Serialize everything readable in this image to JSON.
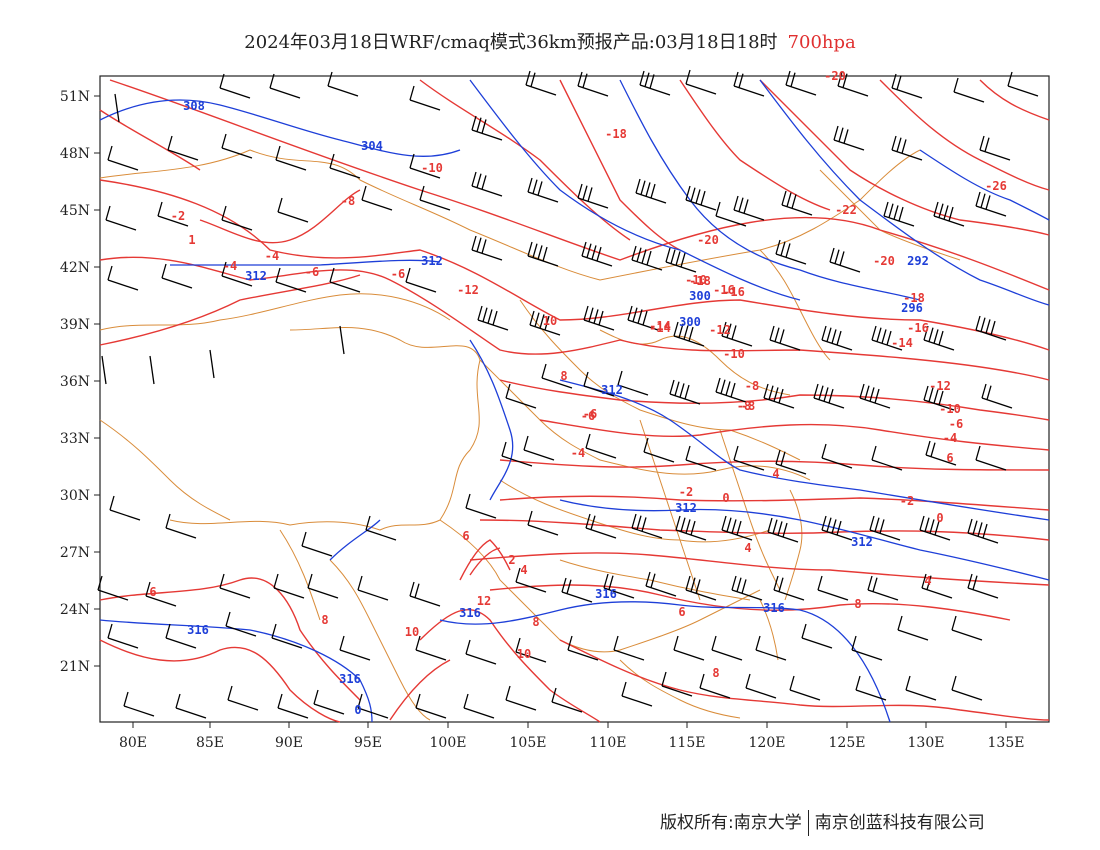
{
  "title": {
    "main": "2024年03月18日WRF/cmaq模式36km预报产品:03月18日18时",
    "level": "700hpa"
  },
  "footer": {
    "left": "版权所有:南京大学",
    "right": "南京创蓝科技有限公司"
  },
  "axes": {
    "x_ticks": [
      "80E",
      "85E",
      "90E",
      "95E",
      "100E",
      "105E",
      "110E",
      "115E",
      "120E",
      "125E",
      "130E",
      "135E"
    ],
    "y_ticks": [
      "51N",
      "48N",
      "45N",
      "42N",
      "39N",
      "36N",
      "33N",
      "30N",
      "27N",
      "24N",
      "21N"
    ]
  },
  "colors": {
    "temperature": "#e53935",
    "geopotential": "#1e3fd8",
    "border": "#d98c3a",
    "barb": "#000000"
  },
  "contour_labels": {
    "temperature": [
      "-20",
      "-2",
      "1",
      "-4",
      "-4",
      "-6",
      "-6",
      "-8",
      "-10",
      "-18",
      "-20",
      "-22",
      "-26",
      "-18",
      "-16",
      "-14",
      "-12",
      "-10",
      "-20",
      "-18",
      "-16",
      "-14",
      "-12",
      "-10",
      "-8",
      "-8",
      "-6",
      "-6",
      "-4",
      "-4",
      "-2",
      "0",
      "-2",
      "0",
      "4",
      "4",
      "6",
      "6",
      "8",
      "10",
      "12",
      "6",
      "8",
      "10",
      "2",
      "4",
      "8",
      "8",
      "6",
      "10",
      "8",
      "-10",
      "-12",
      "-14",
      "-16",
      "-8",
      "-6",
      "4"
    ],
    "geopotential": [
      "308",
      "304",
      "312",
      "312",
      "300",
      "296",
      "292",
      "300",
      "312",
      "312",
      "316",
      "316",
      "316",
      "316",
      "312",
      "316",
      "0"
    ]
  }
}
